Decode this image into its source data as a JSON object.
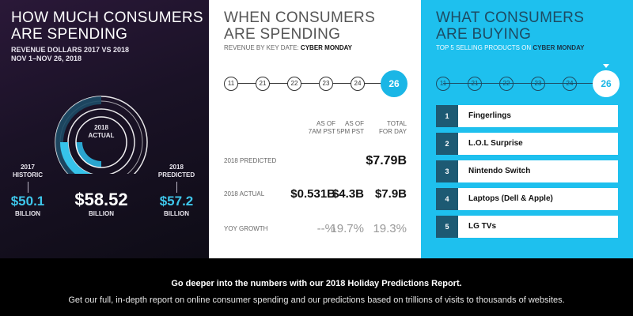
{
  "colors": {
    "accent": "#1ec0ee",
    "dark_blue": "#1d5a73",
    "panel1_bg": "#1a1226"
  },
  "spending": {
    "title_line1": "HOW MUCH CONSUMERS",
    "title_line2": "ARE SPENDING",
    "sub_line1": "REVENUE DOLLARS 2017 VS 2018",
    "sub_line2": "NOV 1–NOV 26, 2018",
    "actual": {
      "year": "2018",
      "label": "ACTUAL",
      "value": "$58.52",
      "unit": "BILLION"
    },
    "historic": {
      "year": "2017",
      "label": "HISTORIC",
      "value": "$50.1",
      "unit": "BILLION"
    },
    "predicted": {
      "year": "2018",
      "label": "PREDICTED",
      "value": "$57.2",
      "unit": "BILLION"
    }
  },
  "timing": {
    "title_line1": "WHEN CONSUMERS",
    "title_line2": "ARE SPENDING",
    "sub_prefix": "REVENUE BY KEY DATE: ",
    "sub_bold": "CYBER MONDAY",
    "dates": [
      "11",
      "21",
      "22",
      "23",
      "24",
      "26"
    ],
    "active_date": "26",
    "columns": [
      {
        "line1": "AS OF",
        "line2": "7AM PST"
      },
      {
        "line1": "AS OF",
        "line2": "5PM PST"
      },
      {
        "line1": "TOTAL",
        "line2": "FOR DAY"
      }
    ],
    "rows": [
      {
        "label": "2018 PREDICTED",
        "values": [
          "",
          "",
          "$7.79B"
        ]
      },
      {
        "label": "2018 ACTUAL",
        "values": [
          "$0.531B",
          "$4.3B",
          "$7.9B"
        ]
      },
      {
        "label": "YOY GROWTH",
        "values": [
          "--%",
          "19.7%",
          "19.3%"
        ]
      }
    ]
  },
  "buying": {
    "title_line1": "WHAT CONSUMERS",
    "title_line2": "ARE BUYING",
    "sub_prefix": "TOP 5 SELLING PRODUCTS ON ",
    "sub_bold": "CYBER MONDAY",
    "dates": [
      "11",
      "21",
      "22",
      "23",
      "24",
      "26"
    ],
    "active_date": "26",
    "products": [
      {
        "rank": "1",
        "name": "Fingerlings"
      },
      {
        "rank": "2",
        "name": "L.O.L Surprise"
      },
      {
        "rank": "3",
        "name": "Nintendo Switch"
      },
      {
        "rank": "4",
        "name": "Laptops (Dell & Apple)"
      },
      {
        "rank": "5",
        "name": "LG TVs"
      }
    ]
  },
  "footer": {
    "headline": "Go deeper into the numbers with our 2018 Holiday Predictions Report.",
    "body": "Get our full, in-depth report on online consumer spending and our predictions based on trillions of visits to thousands of websites."
  }
}
